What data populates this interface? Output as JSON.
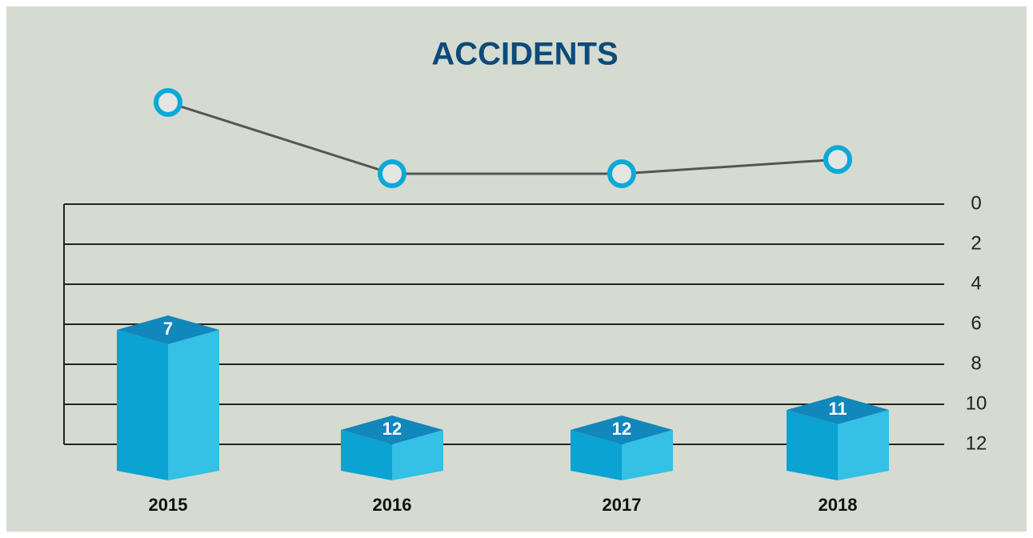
{
  "chart_data": {
    "type": "bar",
    "title": "ACCIDENTS",
    "categories": [
      "2015",
      "2016",
      "2017",
      "2018"
    ],
    "values": [
      7,
      12,
      12,
      11
    ],
    "color": "#0aa3d2",
    "line_color": "#555555",
    "ylim": [
      0,
      12
    ],
    "yticks": [
      0,
      2,
      4,
      6,
      8,
      10,
      12
    ],
    "y_inverted": true,
    "grid": true
  }
}
